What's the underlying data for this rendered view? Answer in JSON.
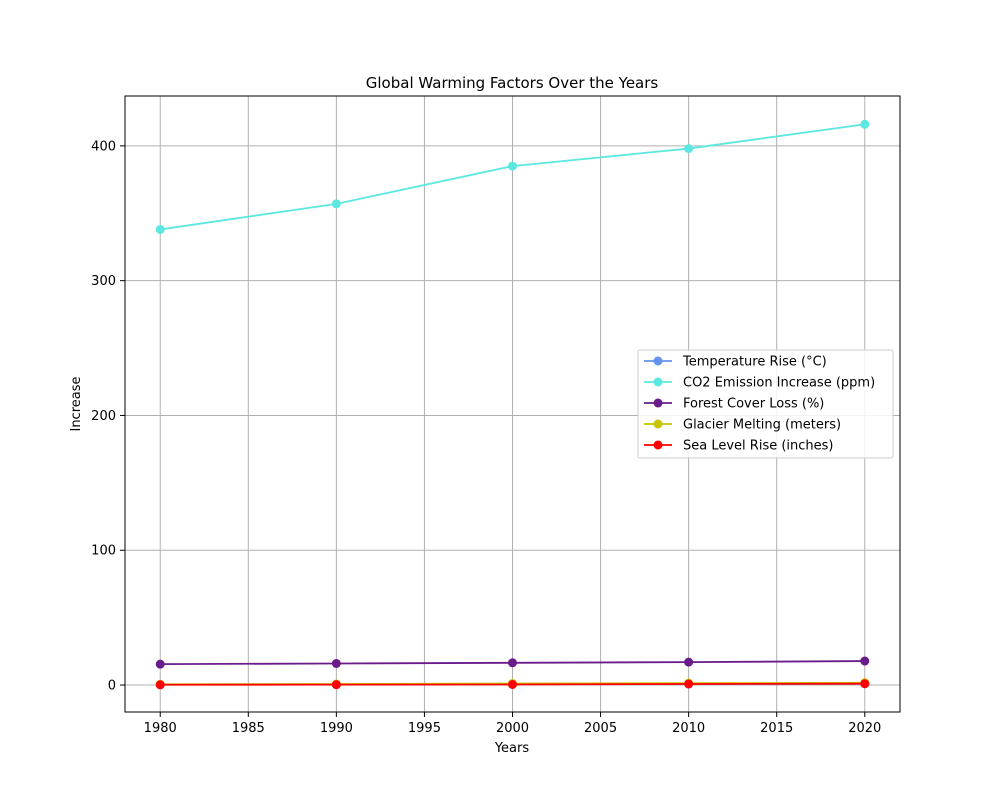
{
  "chart_data": {
    "type": "line",
    "title": "Global Warming Factors Over the Years",
    "xlabel": "Years",
    "ylabel": "Increase",
    "x": [
      1980,
      1990,
      2000,
      2010,
      2020
    ],
    "xlim": [
      1978,
      2022
    ],
    "ylim": [
      -20,
      437
    ],
    "xticks": [
      "1980",
      "1985",
      "1990",
      "1995",
      "2000",
      "2005",
      "2010",
      "2015",
      "2020"
    ],
    "yticks": [
      "0",
      "100",
      "200",
      "300",
      "400"
    ],
    "grid": true,
    "legend_position": "center-right",
    "series": [
      {
        "name": "Temperature Rise (°C)",
        "color": "#6495ed",
        "values": [
          0.3,
          0.4,
          0.6,
          0.8,
          1.0
        ]
      },
      {
        "name": "CO2 Emission Increase (ppm)",
        "color": "#5ce8e0",
        "values": [
          338,
          357,
          385,
          398,
          416
        ]
      },
      {
        "name": "Forest Cover Loss (%)",
        "color": "#6a1b8a",
        "values": [
          15.5,
          16,
          16.5,
          17,
          17.8
        ]
      },
      {
        "name": "Glacier Melting (meters)",
        "color": "#c8c400",
        "values": [
          0.6,
          0.8,
          1.1,
          1.4,
          1.7
        ]
      },
      {
        "name": "Sea Level Rise (inches)",
        "color": "#ff0000",
        "values": [
          0.2,
          0.3,
          0.4,
          0.8,
          1.0
        ]
      }
    ]
  }
}
